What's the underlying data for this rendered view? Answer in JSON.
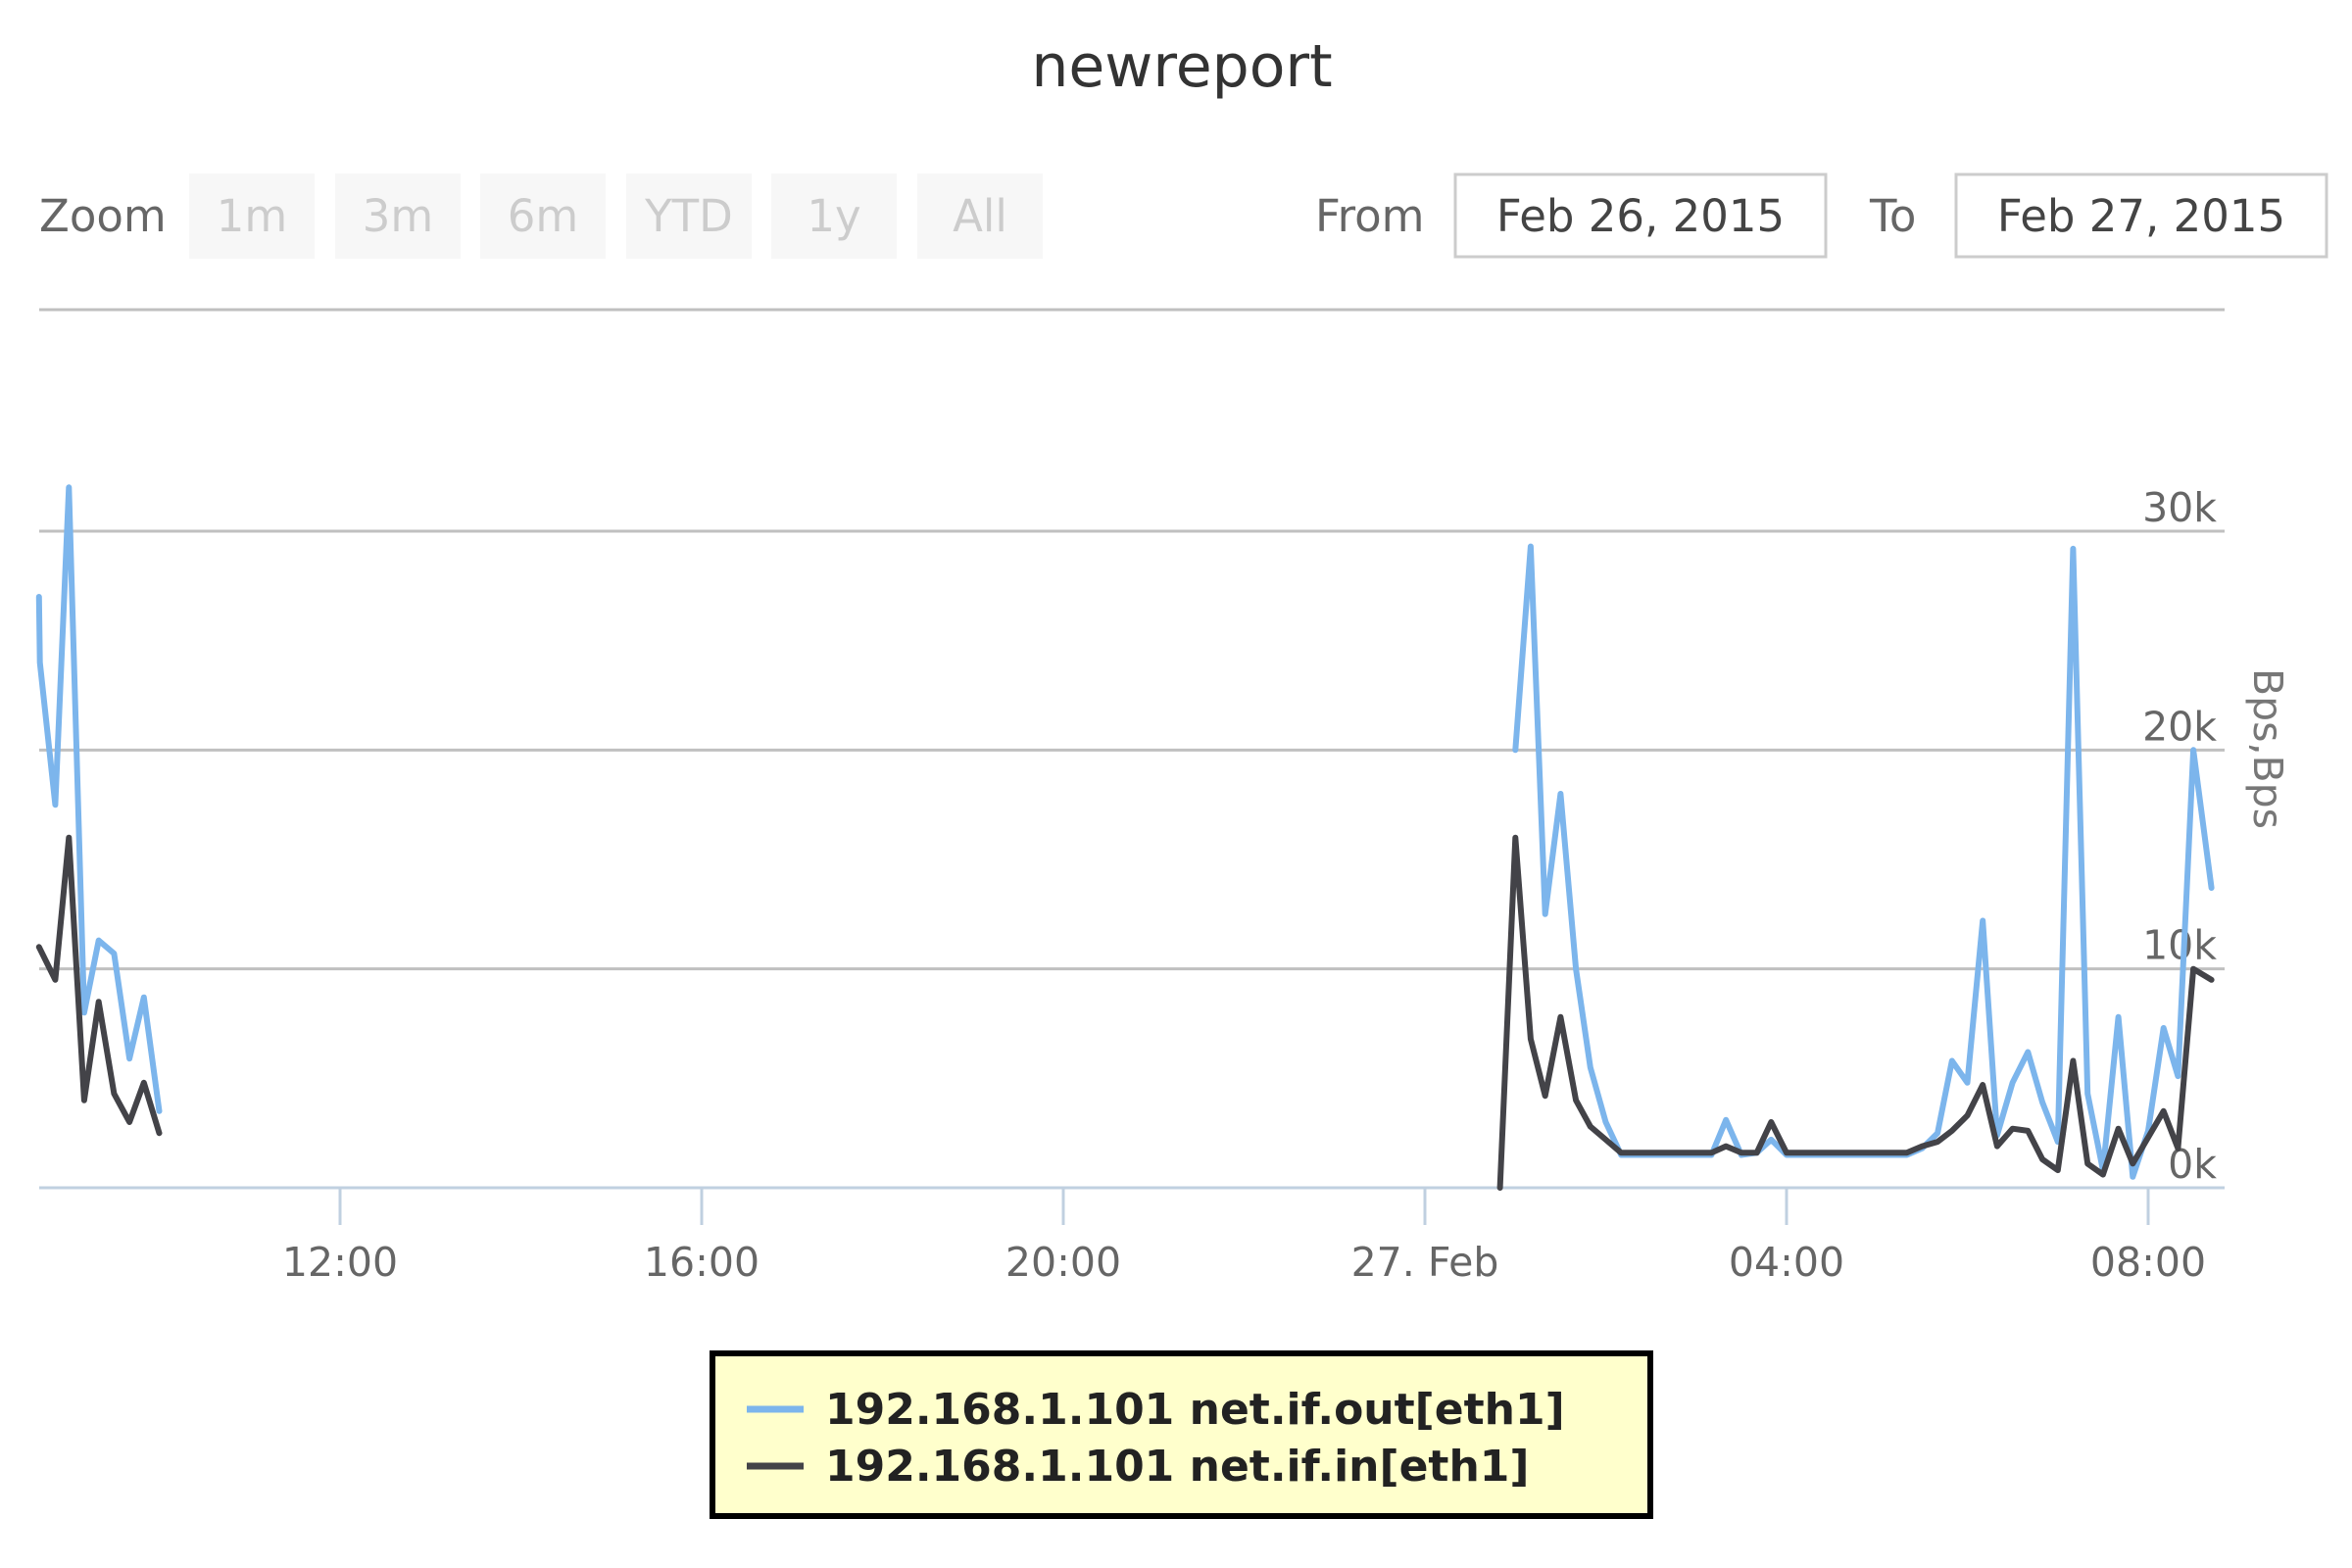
{
  "title": "newreport",
  "range_selector": {
    "zoom_label": "Zoom",
    "buttons": [
      "1m",
      "3m",
      "6m",
      "YTD",
      "1y",
      "All"
    ],
    "from_label": "From",
    "from_value": "Feb 26, 2015",
    "to_label": "To",
    "to_value": "Feb 27, 2015"
  },
  "colors": {
    "out": "#7cb5ec",
    "in": "#434348"
  },
  "chart_data": {
    "type": "line",
    "title": "newreport",
    "ylabel": "Bps,Bps",
    "xlabel": "",
    "x_ticks": [
      "12:00",
      "16:00",
      "20:00",
      "27. Feb",
      "04:00",
      "08:00"
    ],
    "x_tick_hours": [
      12,
      16,
      20,
      24,
      28,
      32
    ],
    "y_ticks": [
      "0k",
      "10k",
      "20k",
      "30k"
    ],
    "y_tick_values": [
      0,
      10000,
      20000,
      30000
    ],
    "xlim_hours": [
      8.67,
      32.8
    ],
    "ylim": [
      0,
      40000
    ],
    "grid": true,
    "legend_position": "bottom-center",
    "series": [
      {
        "name": "192.168.1.101 net.if.out[eth1]",
        "color": "#7cb5ec",
        "segments": [
          [
            [
              8.67,
              27000
            ],
            [
              8.68,
              24000
            ],
            [
              8.85,
              17500
            ],
            [
              9.0,
              32000
            ],
            [
              9.17,
              8000
            ],
            [
              9.33,
              11300
            ],
            [
              9.5,
              10700
            ],
            [
              9.67,
              5900
            ],
            [
              9.83,
              8700
            ],
            [
              10.0,
              3500
            ]
          ],
          [
            [
              25.0,
              20000
            ],
            [
              25.17,
              29300
            ],
            [
              25.33,
              12500
            ],
            [
              25.5,
              18000
            ],
            [
              25.67,
              10000
            ],
            [
              25.83,
              5500
            ],
            [
              26.0,
              3000
            ],
            [
              26.17,
              1500
            ],
            [
              26.5,
              1500
            ],
            [
              26.83,
              1500
            ],
            [
              27.17,
              1500
            ],
            [
              27.33,
              3100
            ],
            [
              27.5,
              1500
            ],
            [
              27.67,
              1600
            ],
            [
              27.83,
              2200
            ],
            [
              28.0,
              1500
            ],
            [
              28.33,
              1500
            ],
            [
              28.67,
              1500
            ],
            [
              29.0,
              1500
            ],
            [
              29.33,
              1500
            ],
            [
              29.5,
              1800
            ],
            [
              29.67,
              2500
            ],
            [
              29.83,
              5800
            ],
            [
              30.0,
              4800
            ],
            [
              30.17,
              12200
            ],
            [
              30.33,
              2400
            ],
            [
              30.5,
              4800
            ],
            [
              30.67,
              6200
            ],
            [
              30.83,
              3900
            ],
            [
              31.0,
              2100
            ],
            [
              31.17,
              29200
            ],
            [
              31.33,
              4300
            ],
            [
              31.5,
              800
            ],
            [
              31.67,
              7800
            ],
            [
              31.83,
              500
            ],
            [
              32.0,
              2600
            ],
            [
              32.17,
              7300
            ],
            [
              32.33,
              5100
            ],
            [
              32.5,
              20000
            ],
            [
              32.7,
              13700
            ]
          ]
        ]
      },
      {
        "name": "192.168.1.101 net.if.in[eth1]",
        "color": "#434348",
        "segments": [
          [
            [
              8.67,
              11000
            ],
            [
              8.85,
              9500
            ],
            [
              9.0,
              16000
            ],
            [
              9.17,
              4000
            ],
            [
              9.33,
              8500
            ],
            [
              9.5,
              4300
            ],
            [
              9.67,
              3000
            ],
            [
              9.83,
              4800
            ],
            [
              10.0,
              2500
            ]
          ],
          [
            [
              24.83,
              0
            ],
            [
              25.0,
              16000
            ],
            [
              25.17,
              6800
            ],
            [
              25.33,
              4200
            ],
            [
              25.5,
              7800
            ],
            [
              25.67,
              4000
            ],
            [
              25.83,
              2800
            ],
            [
              26.0,
              2200
            ],
            [
              26.17,
              1600
            ],
            [
              26.5,
              1600
            ],
            [
              26.83,
              1600
            ],
            [
              27.17,
              1600
            ],
            [
              27.33,
              1900
            ],
            [
              27.5,
              1600
            ],
            [
              27.67,
              1600
            ],
            [
              27.83,
              3000
            ],
            [
              28.0,
              1600
            ],
            [
              28.33,
              1600
            ],
            [
              28.67,
              1600
            ],
            [
              29.0,
              1600
            ],
            [
              29.33,
              1600
            ],
            [
              29.5,
              1900
            ],
            [
              29.67,
              2100
            ],
            [
              29.83,
              2600
            ],
            [
              30.0,
              3300
            ],
            [
              30.17,
              4700
            ],
            [
              30.33,
              1900
            ],
            [
              30.5,
              2700
            ],
            [
              30.67,
              2600
            ],
            [
              30.83,
              1300
            ],
            [
              31.0,
              800
            ],
            [
              31.17,
              5800
            ],
            [
              31.33,
              1100
            ],
            [
              31.5,
              600
            ],
            [
              31.67,
              2700
            ],
            [
              31.83,
              1100
            ],
            [
              32.0,
              2300
            ],
            [
              32.17,
              3500
            ],
            [
              32.33,
              1800
            ],
            [
              32.5,
              10000
            ],
            [
              32.7,
              9500
            ]
          ]
        ]
      }
    ]
  }
}
